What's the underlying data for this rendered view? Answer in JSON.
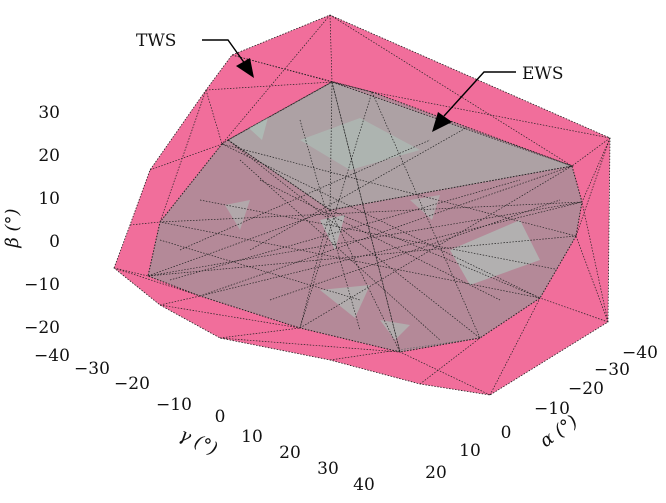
{
  "chart_data": {
    "type": "3d-polyhedron",
    "title": "",
    "axes": {
      "beta": {
        "label": "β (°)",
        "ticks": [
          "30",
          "20",
          "10",
          "0",
          "−10",
          "−20"
        ],
        "range": [
          -20,
          30
        ]
      },
      "gamma": {
        "label": "γ (°)",
        "ticks": [
          "−40",
          "−30",
          "−20",
          "−10",
          "0",
          "10",
          "20",
          "30",
          "40"
        ],
        "range": [
          -40,
          40
        ]
      },
      "alpha": {
        "label": "α (°)",
        "ticks": [
          "−40",
          "−30",
          "−20",
          "−10",
          "0",
          "10",
          "20"
        ],
        "range": [
          -40,
          20
        ]
      }
    },
    "series": [
      {
        "name": "TWS",
        "color": "#f06292"
      },
      {
        "name": "EWS",
        "color": "#9aa39d"
      }
    ],
    "annotations": [
      "TWS",
      "EWS"
    ]
  }
}
